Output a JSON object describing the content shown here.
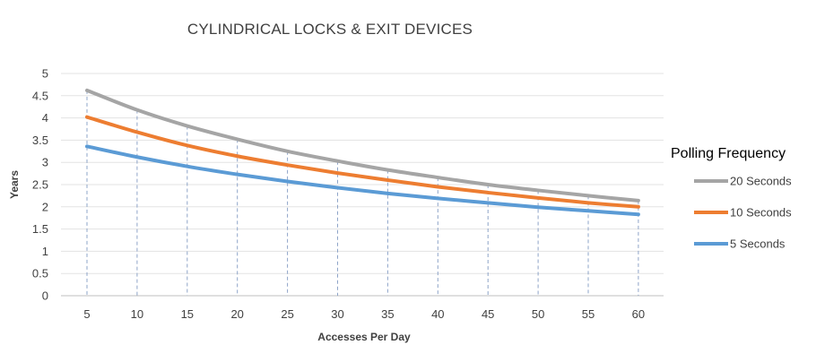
{
  "chart_data": {
    "type": "line",
    "title": "CYLINDRICAL LOCKS & EXIT DEVICES",
    "xlabel": "Accesses Per Day",
    "ylabel": "Years",
    "x": [
      5,
      10,
      15,
      20,
      25,
      30,
      35,
      40,
      45,
      50,
      55,
      60
    ],
    "ylim": [
      0,
      5
    ],
    "yticks": [
      0,
      0.5,
      1,
      1.5,
      2,
      2.5,
      3,
      3.5,
      4,
      4.5,
      5
    ],
    "grid": "horizontal",
    "x_drop_lines": "dashed",
    "legend": {
      "title": "Polling Frequency",
      "position": "right"
    },
    "series": [
      {
        "name": "20 Seconds",
        "color": "#a5a5a5",
        "values": [
          4.62,
          4.18,
          3.82,
          3.52,
          3.25,
          3.03,
          2.83,
          2.66,
          2.5,
          2.37,
          2.25,
          2.14
        ]
      },
      {
        "name": "10 Seconds",
        "color": "#ed7d31",
        "values": [
          4.02,
          3.68,
          3.38,
          3.14,
          2.94,
          2.76,
          2.6,
          2.45,
          2.32,
          2.2,
          2.09,
          2.0
        ]
      },
      {
        "name": "5 Seconds",
        "color": "#5b9bd5",
        "values": [
          3.36,
          3.12,
          2.91,
          2.73,
          2.57,
          2.43,
          2.3,
          2.19,
          2.09,
          1.99,
          1.91,
          1.83
        ]
      }
    ]
  }
}
